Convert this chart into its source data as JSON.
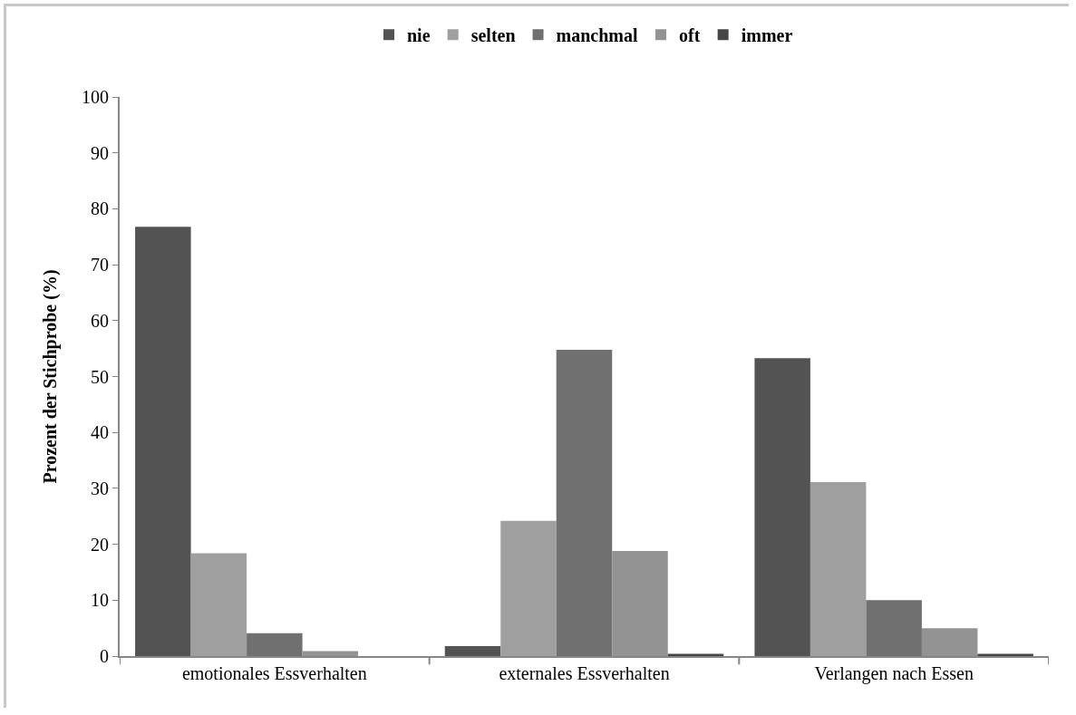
{
  "chart_data": {
    "type": "bar",
    "ylabel": "Prozent der Stichprobe (%)",
    "categories": [
      "emotionales Essverhalten",
      "externales Essverhalten",
      "Verlangen nach Essen"
    ],
    "series": [
      {
        "name": "nie",
        "color": "#535353",
        "values": [
          76.8,
          1.8,
          53.3
        ]
      },
      {
        "name": "selten",
        "color": "#9f9f9f",
        "values": [
          18.4,
          24.2,
          31.1
        ]
      },
      {
        "name": "manchmal",
        "color": "#707070",
        "values": [
          4.1,
          54.8,
          10.0
        ]
      },
      {
        "name": "oft",
        "color": "#939393",
        "values": [
          0.9,
          18.8,
          5.0
        ]
      },
      {
        "name": "immer",
        "color": "#454545",
        "values": [
          0,
          0.4,
          0.4
        ]
      }
    ],
    "ylim": [
      0,
      100
    ],
    "yticks": [
      0,
      10,
      20,
      30,
      40,
      50,
      60,
      70,
      80,
      90,
      100
    ],
    "grid": false,
    "legend": "top"
  }
}
